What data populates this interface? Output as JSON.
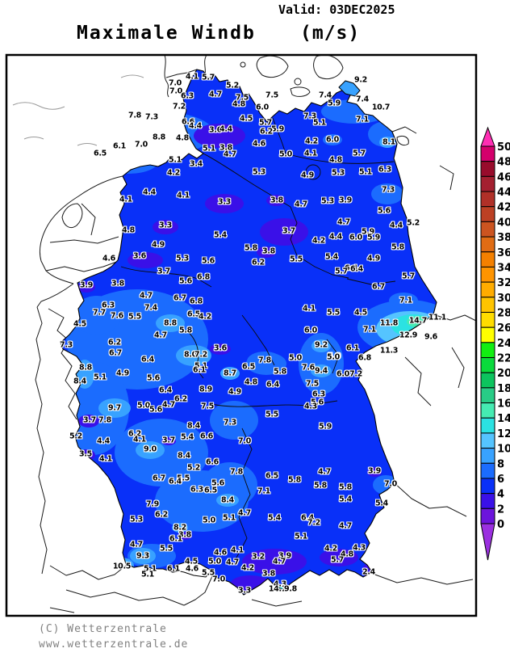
{
  "header": {
    "valid_label": "Valid: 03DEC2025",
    "title": "Maximale Windb",
    "unit": "(m/s)"
  },
  "footer": {
    "copyright": "(C) Wetterzentrale",
    "url": "www.wetterzentrale.de"
  },
  "legend": {
    "values_top_to_bottom": [
      "50",
      "48",
      "46",
      "44",
      "42",
      "40",
      "38",
      "36",
      "34",
      "32",
      "30",
      "28",
      "26",
      "24",
      "22",
      "20",
      "18",
      "16",
      "14",
      "12",
      "10",
      "8",
      "6",
      "4",
      "2",
      "0"
    ],
    "colors_top_to_bottom": [
      "#D4006C",
      "#980C2C",
      "#A42030",
      "#B03028",
      "#BC4024",
      "#CC5420",
      "#E06C14",
      "#F48000",
      "#FF9400",
      "#FFAC00",
      "#FFC400",
      "#FFDC00",
      "#FFFF00",
      "#12EE12",
      "#0ADA3C",
      "#0CC45E",
      "#28CC86",
      "#45EBB2",
      "#2BE2E2",
      "#55C4FF",
      "#38A2FF",
      "#1B6CFE",
      "#0930F8",
      "#3A10E8",
      "#6C14DC"
    ],
    "arrow_above_color": "#FF2EB4",
    "arrow_below_color": "#9B30E0"
  },
  "map": {
    "base_color": "#0930F8",
    "stations": [
      [
        "4.1",
        238,
        95
      ],
      [
        "5.7",
        258,
        96
      ],
      [
        "9.2",
        447,
        99
      ],
      [
        "7.0",
        217,
        103
      ],
      [
        "5.2",
        288,
        106
      ],
      [
        "7.0",
        218,
        113
      ],
      [
        "4.7",
        267,
        117
      ],
      [
        "7.5",
        300,
        121
      ],
      [
        "7.5",
        337,
        118
      ],
      [
        "7.4",
        403,
        118
      ],
      [
        "6.3",
        232,
        119
      ],
      [
        "7.4",
        449,
        123
      ],
      [
        "5.9",
        414,
        128
      ],
      [
        "4.8",
        296,
        129
      ],
      [
        "7.2",
        222,
        132
      ],
      [
        "6.0",
        325,
        133
      ],
      [
        "10.7",
        472,
        133
      ],
      [
        "7.8",
        167,
        143
      ],
      [
        "7.3",
        188,
        145
      ],
      [
        "7.3",
        384,
        144
      ],
      [
        "4.5",
        305,
        147
      ],
      [
        "7.1",
        449,
        148
      ],
      [
        "6.6",
        233,
        151
      ],
      [
        "5.7",
        329,
        152
      ],
      [
        "5.1",
        396,
        152
      ],
      [
        "4.4",
        242,
        156
      ],
      [
        "3.6",
        267,
        161
      ],
      [
        "4.4",
        280,
        160
      ],
      [
        "5.9",
        344,
        160
      ],
      [
        "6.2",
        330,
        163
      ],
      [
        "8.8",
        197,
        170
      ],
      [
        "4.8",
        226,
        171
      ],
      [
        "6.0",
        412,
        173
      ],
      [
        "4.2",
        386,
        175
      ],
      [
        "8.1",
        482,
        176
      ],
      [
        "4.6",
        321,
        178
      ],
      [
        "7.0",
        175,
        179
      ],
      [
        "6.1",
        148,
        181
      ],
      [
        "3.8",
        280,
        183
      ],
      [
        "5.1",
        259,
        184
      ],
      [
        "5.0",
        354,
        191
      ],
      [
        "4.1",
        385,
        190
      ],
      [
        "5.7",
        445,
        190
      ],
      [
        "6.5",
        124,
        190
      ],
      [
        "4.7",
        285,
        191
      ],
      [
        "5.1",
        217,
        198
      ],
      [
        "4.8",
        416,
        198
      ],
      [
        "3.4",
        243,
        203
      ],
      [
        "4.2",
        215,
        214
      ],
      [
        "5.3",
        321,
        213
      ],
      [
        "5.3",
        419,
        214
      ],
      [
        "5.1",
        453,
        213
      ],
      [
        "6.3",
        477,
        210
      ],
      [
        "4.9",
        381,
        217
      ],
      [
        "7.3",
        481,
        235
      ],
      [
        "4.4",
        185,
        238
      ],
      [
        "4.1",
        227,
        242
      ],
      [
        "4.1",
        156,
        247
      ],
      [
        "3.8",
        343,
        248
      ],
      [
        "3.9",
        428,
        248
      ],
      [
        "5.3",
        406,
        249
      ],
      [
        "3.3",
        278,
        250
      ],
      [
        "4.7",
        373,
        253
      ],
      [
        "5.6",
        476,
        261
      ],
      [
        "4.7",
        426,
        275
      ],
      [
        "5.2",
        512,
        276
      ],
      [
        "3.3",
        205,
        279
      ],
      [
        "4.4",
        491,
        279
      ],
      [
        "4.8",
        159,
        285
      ],
      [
        "3.7",
        358,
        286
      ],
      [
        "5.9",
        456,
        287
      ],
      [
        "5.4",
        273,
        291
      ],
      [
        "4.4",
        416,
        293
      ],
      [
        "6.0",
        441,
        294
      ],
      [
        "5.9",
        463,
        294
      ],
      [
        "4.2",
        395,
        298
      ],
      [
        "4.9",
        196,
        303
      ],
      [
        "5.8",
        493,
        306
      ],
      [
        "5.8",
        311,
        307
      ],
      [
        "3.8",
        333,
        311
      ],
      [
        "3.6",
        173,
        317
      ],
      [
        "5.4",
        411,
        318
      ],
      [
        "4.9",
        463,
        320
      ],
      [
        "5.3",
        226,
        320
      ],
      [
        "4.6",
        135,
        320
      ],
      [
        "5.5",
        367,
        321
      ],
      [
        "5.6",
        258,
        323
      ],
      [
        "6.2",
        320,
        325
      ],
      [
        "6.4",
        435,
        332
      ],
      [
        "5.7",
        423,
        336
      ],
      [
        "6.4",
        442,
        333
      ],
      [
        "3.7",
        203,
        336
      ],
      [
        "6.8",
        252,
        343
      ],
      [
        "5.6",
        230,
        348
      ],
      [
        "3.8",
        146,
        351
      ],
      [
        "3.9",
        107,
        353
      ],
      [
        "5.7",
        506,
        342
      ],
      [
        "6.7",
        469,
        355
      ],
      [
        "4.7",
        181,
        366
      ],
      [
        "6.7",
        223,
        369
      ],
      [
        "6.8",
        243,
        373
      ],
      [
        "7.1",
        503,
        372
      ],
      [
        "6.3",
        134,
        378
      ],
      [
        "7.4",
        187,
        381
      ],
      [
        "4.1",
        383,
        382
      ],
      [
        "7.7",
        123,
        387
      ],
      [
        "7.6",
        145,
        391
      ],
      [
        "5.5",
        167,
        392
      ],
      [
        "6.5",
        240,
        389
      ],
      [
        "4.2",
        254,
        392
      ],
      [
        "5.5",
        413,
        387
      ],
      [
        "4.5",
        447,
        387
      ],
      [
        "11.1",
        542,
        393
      ],
      [
        "14.7",
        518,
        397
      ],
      [
        "11.8",
        482,
        400
      ],
      [
        "4.5",
        99,
        401
      ],
      [
        "8.8",
        211,
        400
      ],
      [
        "6.0",
        385,
        409
      ],
      [
        "7.1",
        458,
        408
      ],
      [
        "5.8",
        230,
        409
      ],
      [
        "4.7",
        199,
        415
      ],
      [
        "12.9",
        506,
        415
      ],
      [
        "9.6",
        534,
        417
      ],
      [
        "6.2",
        142,
        424
      ],
      [
        "7.3",
        82,
        427
      ],
      [
        "9.2",
        398,
        427
      ],
      [
        "3.6",
        273,
        431
      ],
      [
        "6.1",
        437,
        431
      ],
      [
        "11.3",
        482,
        434
      ],
      [
        "6.7",
        143,
        437
      ],
      [
        "8.0",
        236,
        439
      ],
      [
        "7.2",
        249,
        439
      ],
      [
        "5.0",
        414,
        441
      ],
      [
        "6.8",
        452,
        443
      ],
      [
        "6.4",
        183,
        445
      ],
      [
        "7.8",
        328,
        446
      ],
      [
        "5.1",
        249,
        453
      ],
      [
        "6.5",
        308,
        454
      ],
      [
        "8.8",
        106,
        455
      ],
      [
        "6.1",
        247,
        458
      ],
      [
        "9.4",
        398,
        459
      ],
      [
        "7.6",
        382,
        455
      ],
      [
        "5.8",
        347,
        460
      ],
      [
        "5.0",
        366,
        443
      ],
      [
        "5.0",
        413,
        442
      ],
      [
        "8.7",
        285,
        462
      ],
      [
        "4.9",
        152,
        462
      ],
      [
        "6.0",
        425,
        463
      ],
      [
        "7.2",
        441,
        463
      ],
      [
        "5.1",
        124,
        467
      ],
      [
        "5.6",
        190,
        468
      ],
      [
        "8.4",
        99,
        472
      ],
      [
        "4.8",
        311,
        473
      ],
      [
        "7.5",
        387,
        475
      ],
      [
        "6.4",
        338,
        476
      ],
      [
        "8.9",
        255,
        482
      ],
      [
        "6.4",
        205,
        483
      ],
      [
        "4.9",
        291,
        485
      ],
      [
        "6.3",
        395,
        488
      ],
      [
        "6.2",
        224,
        494
      ],
      [
        "5.6",
        393,
        498
      ],
      [
        "4.7",
        209,
        501
      ],
      [
        "5.0",
        178,
        502
      ],
      [
        "7.5",
        257,
        503
      ],
      [
        "4.3",
        385,
        503
      ],
      [
        "9.7",
        142,
        505
      ],
      [
        "5.6",
        193,
        507
      ],
      [
        "5.5",
        337,
        513
      ],
      [
        "3.7",
        111,
        520
      ],
      [
        "7.8",
        130,
        520
      ],
      [
        "7.3",
        285,
        523
      ],
      [
        "8.4",
        240,
        527
      ],
      [
        "5.9",
        403,
        528
      ],
      [
        "6.2",
        167,
        537
      ],
      [
        "6.6",
        256,
        540
      ],
      [
        "5.2",
        94,
        540
      ],
      [
        "5.4",
        232,
        541
      ],
      [
        "4.1",
        173,
        544
      ],
      [
        "4.4",
        128,
        546
      ],
      [
        "3.7",
        209,
        545
      ],
      [
        "7.0",
        303,
        546
      ],
      [
        "9.0",
        186,
        556
      ],
      [
        "3.5",
        106,
        562
      ],
      [
        "8.4",
        228,
        564
      ],
      [
        "4.1",
        131,
        568
      ],
      [
        "6.6",
        263,
        572
      ],
      [
        "5.2",
        240,
        579
      ],
      [
        "7.8",
        293,
        584
      ],
      [
        "6.5",
        337,
        589
      ],
      [
        "6.7",
        197,
        592
      ],
      [
        "5.5",
        227,
        592
      ],
      [
        "6.4",
        217,
        596
      ],
      [
        "5.6",
        270,
        598
      ],
      [
        "5.8",
        365,
        594
      ],
      [
        "4.7",
        402,
        584
      ],
      [
        "3.9",
        464,
        583
      ],
      [
        "5.8",
        397,
        601
      ],
      [
        "7.0",
        484,
        599
      ],
      [
        "5.8",
        428,
        603
      ],
      [
        "6.3",
        244,
        606
      ],
      [
        "6.5",
        261,
        607
      ],
      [
        "7.1",
        327,
        608
      ],
      [
        "5.4",
        428,
        618
      ],
      [
        "8.4",
        282,
        619
      ],
      [
        "5.4",
        473,
        623
      ],
      [
        "7.9",
        189,
        624
      ],
      [
        "4.7",
        303,
        635
      ],
      [
        "6.2",
        200,
        637
      ],
      [
        "5.4",
        340,
        641
      ],
      [
        "6.4",
        381,
        641
      ],
      [
        "5.1",
        284,
        641
      ],
      [
        "5.3",
        169,
        643
      ],
      [
        "5.0",
        259,
        644
      ],
      [
        "7.2",
        389,
        647
      ],
      [
        "4.7",
        428,
        651
      ],
      [
        "8.2",
        223,
        653
      ],
      [
        "3.8",
        229,
        662
      ],
      [
        "5.1",
        373,
        664
      ],
      [
        "6.1",
        218,
        667
      ],
      [
        "4.7",
        169,
        674
      ],
      [
        "4.3",
        445,
        678
      ],
      [
        "5.5",
        206,
        679
      ],
      [
        "4.2",
        410,
        679
      ],
      [
        "4.1",
        294,
        681
      ],
      [
        "4.6",
        273,
        684
      ],
      [
        "4.8",
        430,
        686
      ],
      [
        "9.3",
        177,
        688
      ],
      [
        "3.2",
        320,
        689
      ],
      [
        "3.9",
        353,
        688
      ],
      [
        "5.7",
        418,
        693
      ],
      [
        "4.7",
        346,
        695
      ],
      [
        "4.5",
        237,
        695
      ],
      [
        "5.0",
        266,
        695
      ],
      [
        "4.7",
        288,
        696
      ],
      [
        "4.2",
        307,
        703
      ],
      [
        "10.5",
        151,
        701
      ],
      [
        "5.1",
        186,
        704
      ],
      [
        "6.1",
        215,
        704
      ],
      [
        "4.6",
        238,
        704
      ],
      [
        "2.4",
        457,
        708
      ],
      [
        "5.5",
        258,
        709
      ],
      [
        "3.8",
        333,
        710
      ],
      [
        "5.1",
        183,
        711
      ],
      [
        "7.0",
        271,
        717
      ],
      [
        "4.3",
        347,
        723
      ],
      [
        "14.1",
        344,
        729
      ],
      [
        "9.8",
        360,
        729
      ],
      [
        "3.3",
        303,
        731
      ]
    ]
  }
}
